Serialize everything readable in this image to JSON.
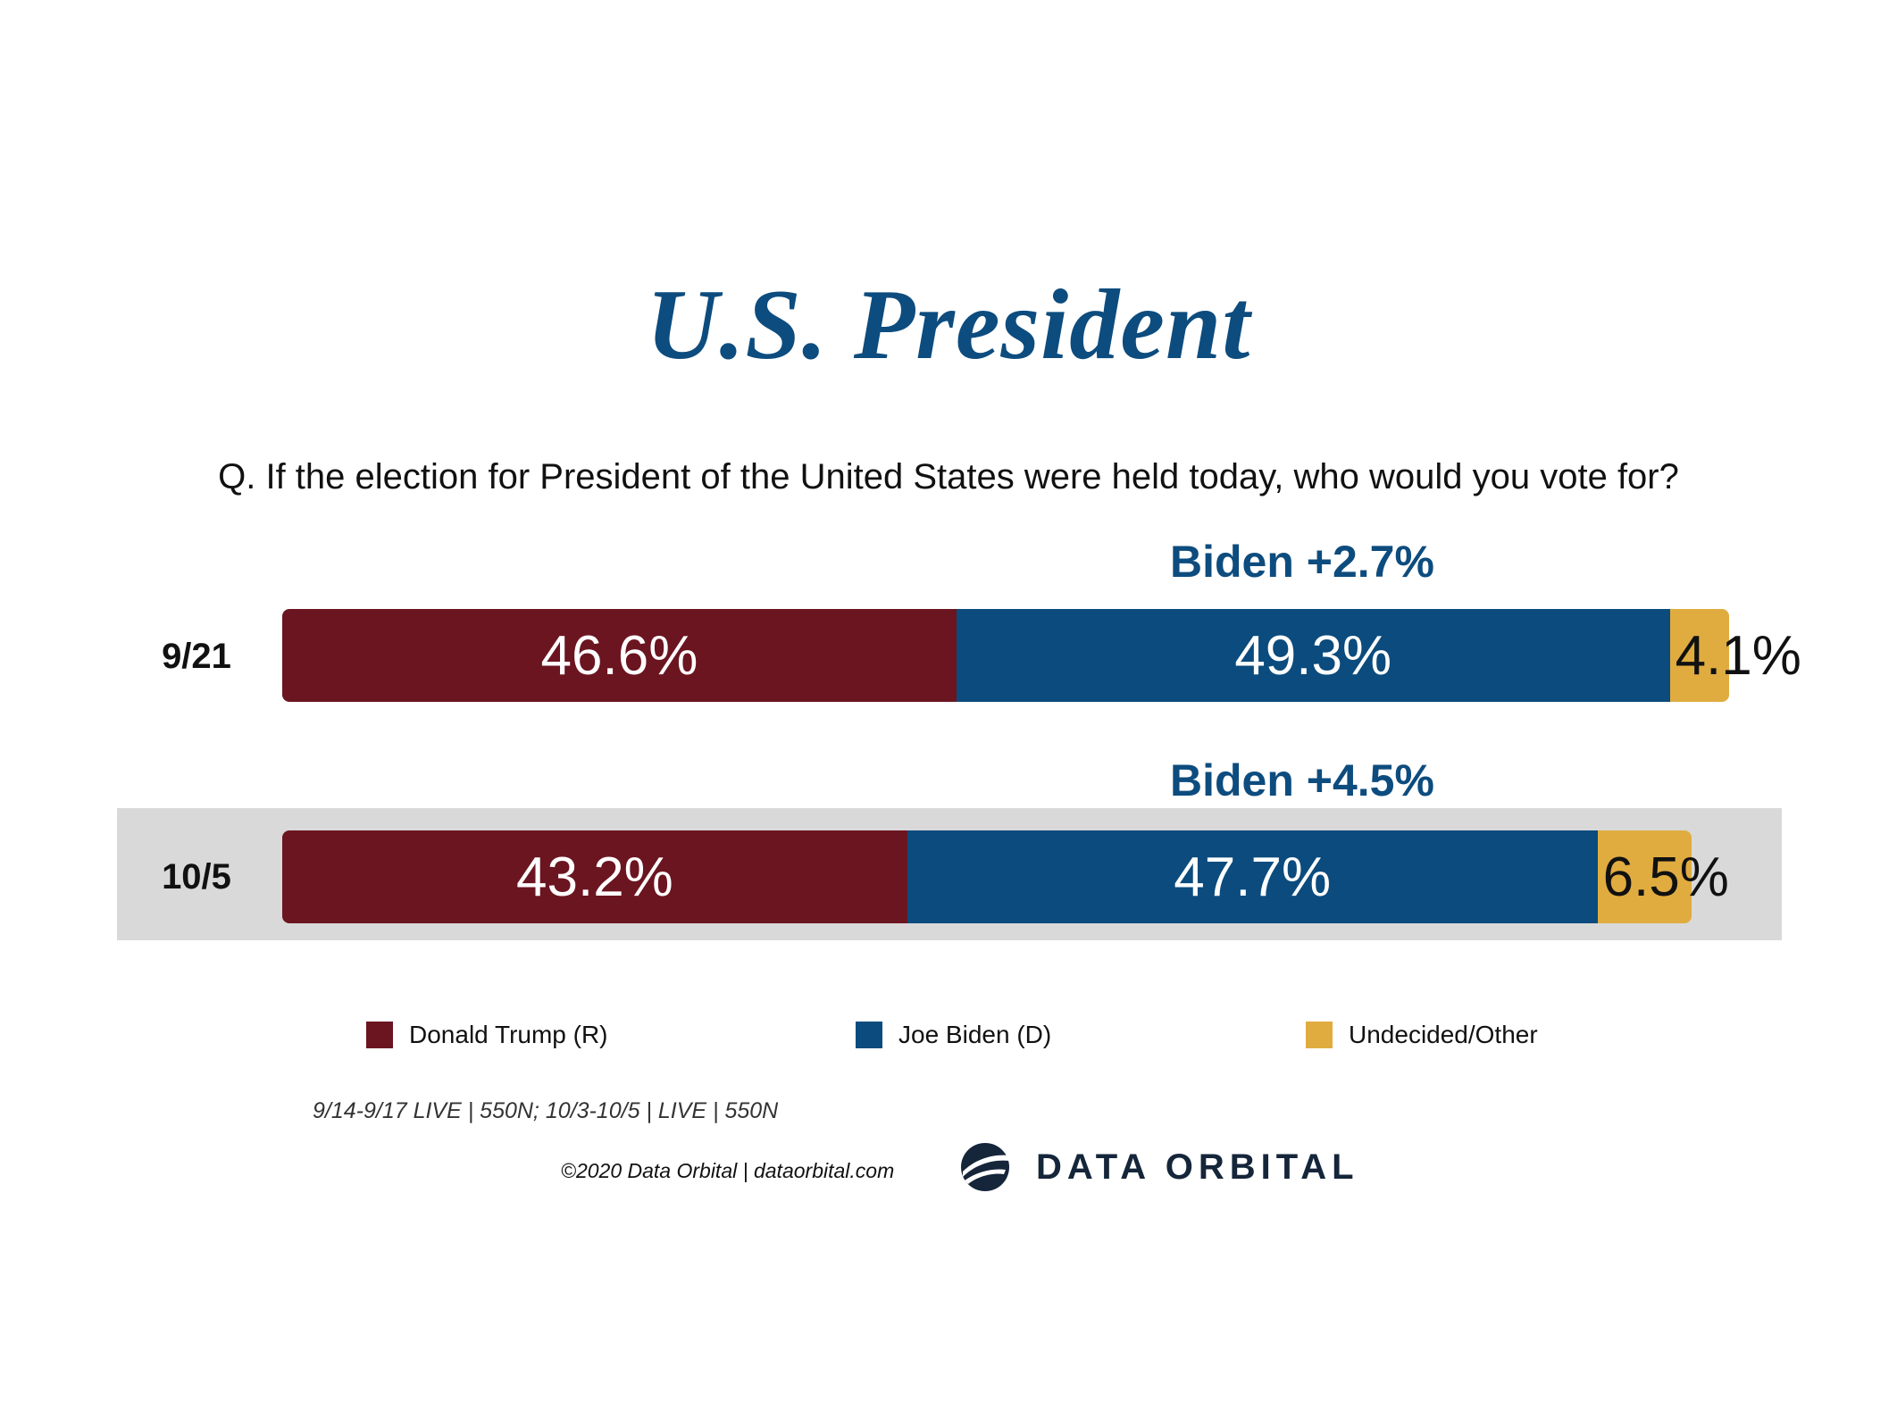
{
  "title": "U.S. President",
  "question": "Q. If the election for President of the United States were held today, who would you vote for?",
  "chart_data": {
    "type": "bar",
    "orientation": "horizontal",
    "stacked": true,
    "categories": [
      "9/21",
      "10/5"
    ],
    "series": [
      {
        "name": "Donald Trump (R)",
        "values": [
          46.6,
          43.2
        ],
        "labels": [
          "46.6%",
          "43.2%"
        ],
        "color": "#6b1520"
      },
      {
        "name": "Joe Biden (D)",
        "values": [
          49.3,
          47.7
        ],
        "labels": [
          "49.3%",
          "47.7%"
        ],
        "color": "#0b4b7d"
      },
      {
        "name": "Undecided/Other",
        "values": [
          4.1,
          6.5
        ],
        "labels": [
          "4.1%",
          "6.5%"
        ],
        "color": "#e0ac40"
      }
    ],
    "annotations": [
      "Biden +2.7%",
      "Biden +4.5%"
    ],
    "highlighted_row": "10/5",
    "legend_position": "bottom",
    "xlim": [
      0,
      100
    ]
  },
  "footnote": "9/14-9/17 LIVE | 550N; 10/3-10/5 | LIVE | 550N",
  "copyright": "©2020 Data Orbital | dataorbital.com",
  "brand": {
    "name": "DATA ORBITAL",
    "logo_icon": "orbital-globe-icon"
  }
}
